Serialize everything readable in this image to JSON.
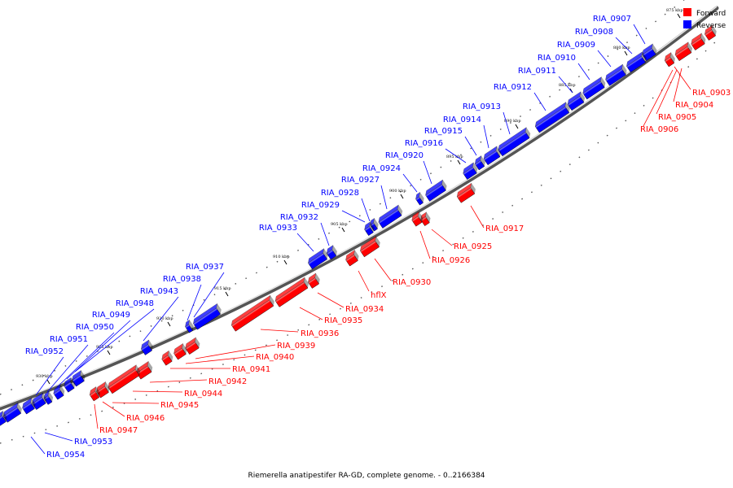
{
  "caption": "Riemerella anatipestifer RA-GD, complete genome. - 0..2166384",
  "legend": [
    {
      "label": "Forward",
      "color": "#ff0000"
    },
    {
      "label": "Reverse",
      "color": "#0000ff"
    }
  ],
  "ticks": [
    "875 kbp",
    "880 kbp",
    "885 kbp",
    "890 kbp",
    "895 kbp",
    "900 kbp",
    "905 kbp",
    "910 kbp",
    "915 kbp",
    "920 kbp",
    "925 kbp",
    "930 kbp"
  ],
  "forward_genes": [
    "RIA_0903",
    "RIA_0904",
    "RIA_0905",
    "RIA_0906",
    "RIA_0917",
    "RIA_0925",
    "RIA_0926",
    "hflX",
    "RIA_0930",
    "RIA_0934",
    "RIA_0935",
    "RIA_0936",
    "RIA_0939",
    "RIA_0940",
    "RIA_0941",
    "RIA_0942",
    "RIA_0944",
    "RIA_0945",
    "RIA_0946",
    "RIA_0947"
  ],
  "reverse_genes": [
    "RIA_0907",
    "RIA_0908",
    "RIA_0909",
    "RIA_0910",
    "RIA_0911",
    "RIA_0912",
    "RIA_0913",
    "RIA_0914",
    "RIA_0915",
    "RIA_0916",
    "RIA_0920",
    "RIA_0924",
    "RIA_0927",
    "RIA_0928",
    "RIA_0929",
    "RIA_0932",
    "RIA_0933",
    "RIA_0937",
    "RIA_0938",
    "RIA_0943",
    "RIA_0948",
    "RIA_0949",
    "RIA_0950",
    "RIA_0951",
    "RIA_0952",
    "RIA_0953",
    "RIA_0954"
  ],
  "colors": {
    "forward": "#ff0000",
    "reverse": "#0000ff",
    "backbone": "#888888"
  }
}
